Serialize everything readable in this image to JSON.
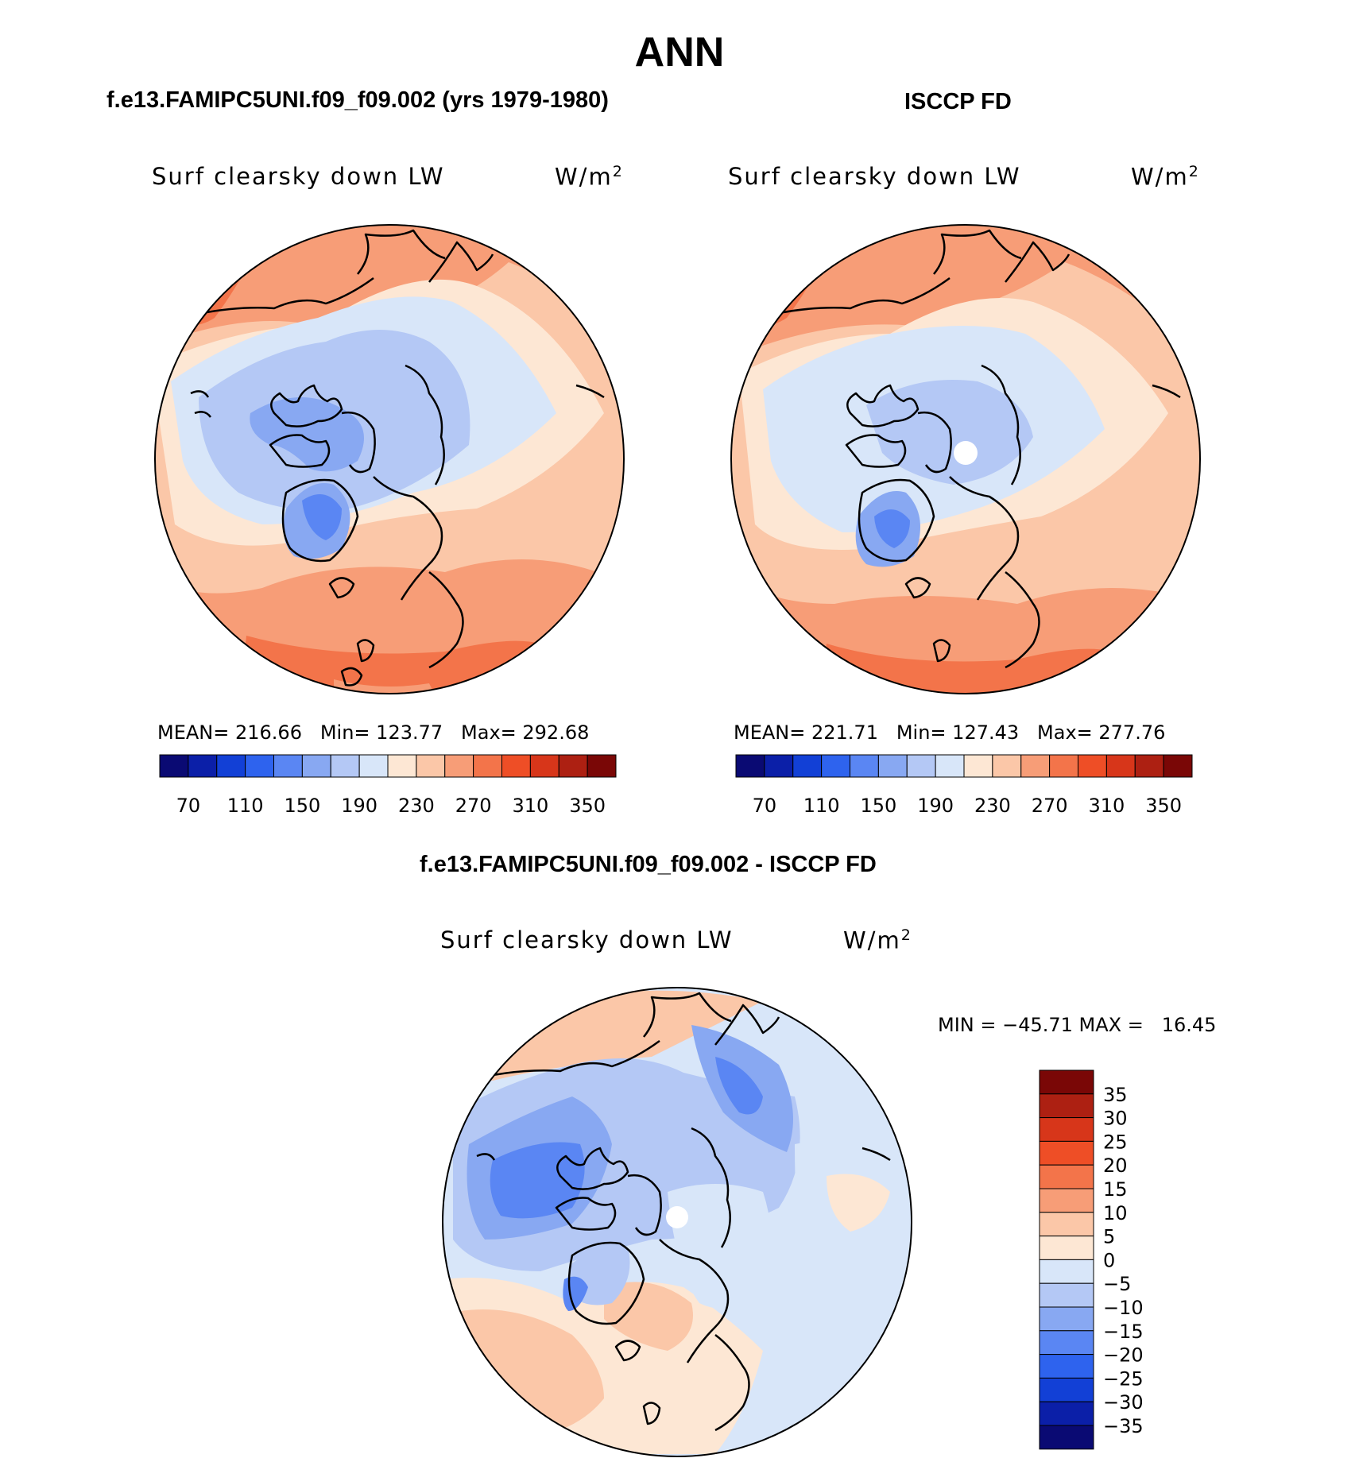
{
  "page_title": "ANN",
  "palette_full": [
    "#0a0a73",
    "#0b1fa8",
    "#1240d6",
    "#2e63ee",
    "#5a86f3",
    "#88a8f2",
    "#b4c8f5",
    "#d8e6f9",
    "#fde7d4",
    "#fbc7a8",
    "#f79d77",
    "#f3744a",
    "#ee4e26",
    "#d7361a",
    "#ad2012",
    "#7a0706"
  ],
  "palette_diff": [
    "#0a0a73",
    "#0b1fa8",
    "#1240d6",
    "#2e63ee",
    "#5a86f3",
    "#88a8f2",
    "#b4c8f5",
    "#d8e6f9",
    "#fde7d4",
    "#fbc7a8",
    "#f79d77",
    "#f3744a",
    "#ee4e26",
    "#d7361a",
    "#ad2012",
    "#7a0706"
  ],
  "coast_color": "#000000",
  "panels": [
    {
      "title": "f.e13.FAMIPC5UNI.f09_f09.002 (yrs 1979-1980)",
      "variable": "Surf clearsky down LW",
      "units": "W/m",
      "units_sup": "2",
      "stats": "MEAN= 216.66   Min= 123.77   Max= 292.68",
      "labels": [
        "70",
        "110",
        "150",
        "190",
        "230",
        "270",
        "310",
        "350"
      ]
    },
    {
      "title": "ISCCP FD",
      "variable": "Surf clearsky down LW",
      "units": "W/m",
      "units_sup": "2",
      "stats": "MEAN= 221.71   Min= 127.43   Max= 277.76",
      "labels": [
        "70",
        "110",
        "150",
        "190",
        "230",
        "270",
        "310",
        "350"
      ]
    }
  ],
  "diff_panel": {
    "title": "f.e13.FAMIPC5UNI.f09_f09.002 - ISCCP FD",
    "variable": "Surf clearsky down LW",
    "units": "W/m",
    "units_sup": "2",
    "stats": "MIN = −45.71 MAX =   16.45",
    "labels": [
      "35",
      "30",
      "25",
      "20",
      "15",
      "10",
      "5",
      "0",
      "−5",
      "−10",
      "−15",
      "−20",
      "−25",
      "−30",
      "−35"
    ]
  },
  "chart_data": [
    {
      "type": "heatmap",
      "title": "f.e13.FAMIPC5UNI.f09_f09.002 (yrs 1979-1980)",
      "subtitle": "Surf clearsky down LW",
      "units": "W/m2",
      "projection": "north polar stereographic",
      "mean": 216.66,
      "min": 123.77,
      "max": 292.68,
      "contour_levels": [
        70,
        90,
        110,
        130,
        150,
        170,
        190,
        210,
        230,
        250,
        270,
        290,
        310,
        330,
        350
      ]
    },
    {
      "type": "heatmap",
      "title": "ISCCP FD",
      "subtitle": "Surf clearsky down LW",
      "units": "W/m2",
      "projection": "north polar stereographic",
      "mean": 221.71,
      "min": 127.43,
      "max": 277.76,
      "contour_levels": [
        70,
        90,
        110,
        130,
        150,
        170,
        190,
        210,
        230,
        250,
        270,
        290,
        310,
        330,
        350
      ]
    },
    {
      "type": "heatmap",
      "title": "f.e13.FAMIPC5UNI.f09_f09.002 - ISCCP FD",
      "subtitle": "Surf clearsky down LW",
      "units": "W/m2",
      "projection": "north polar stereographic",
      "min": -45.71,
      "max": 16.45,
      "contour_levels": [
        -35,
        -30,
        -25,
        -20,
        -15,
        -10,
        -5,
        0,
        5,
        10,
        15,
        20,
        25,
        30,
        35
      ]
    }
  ]
}
